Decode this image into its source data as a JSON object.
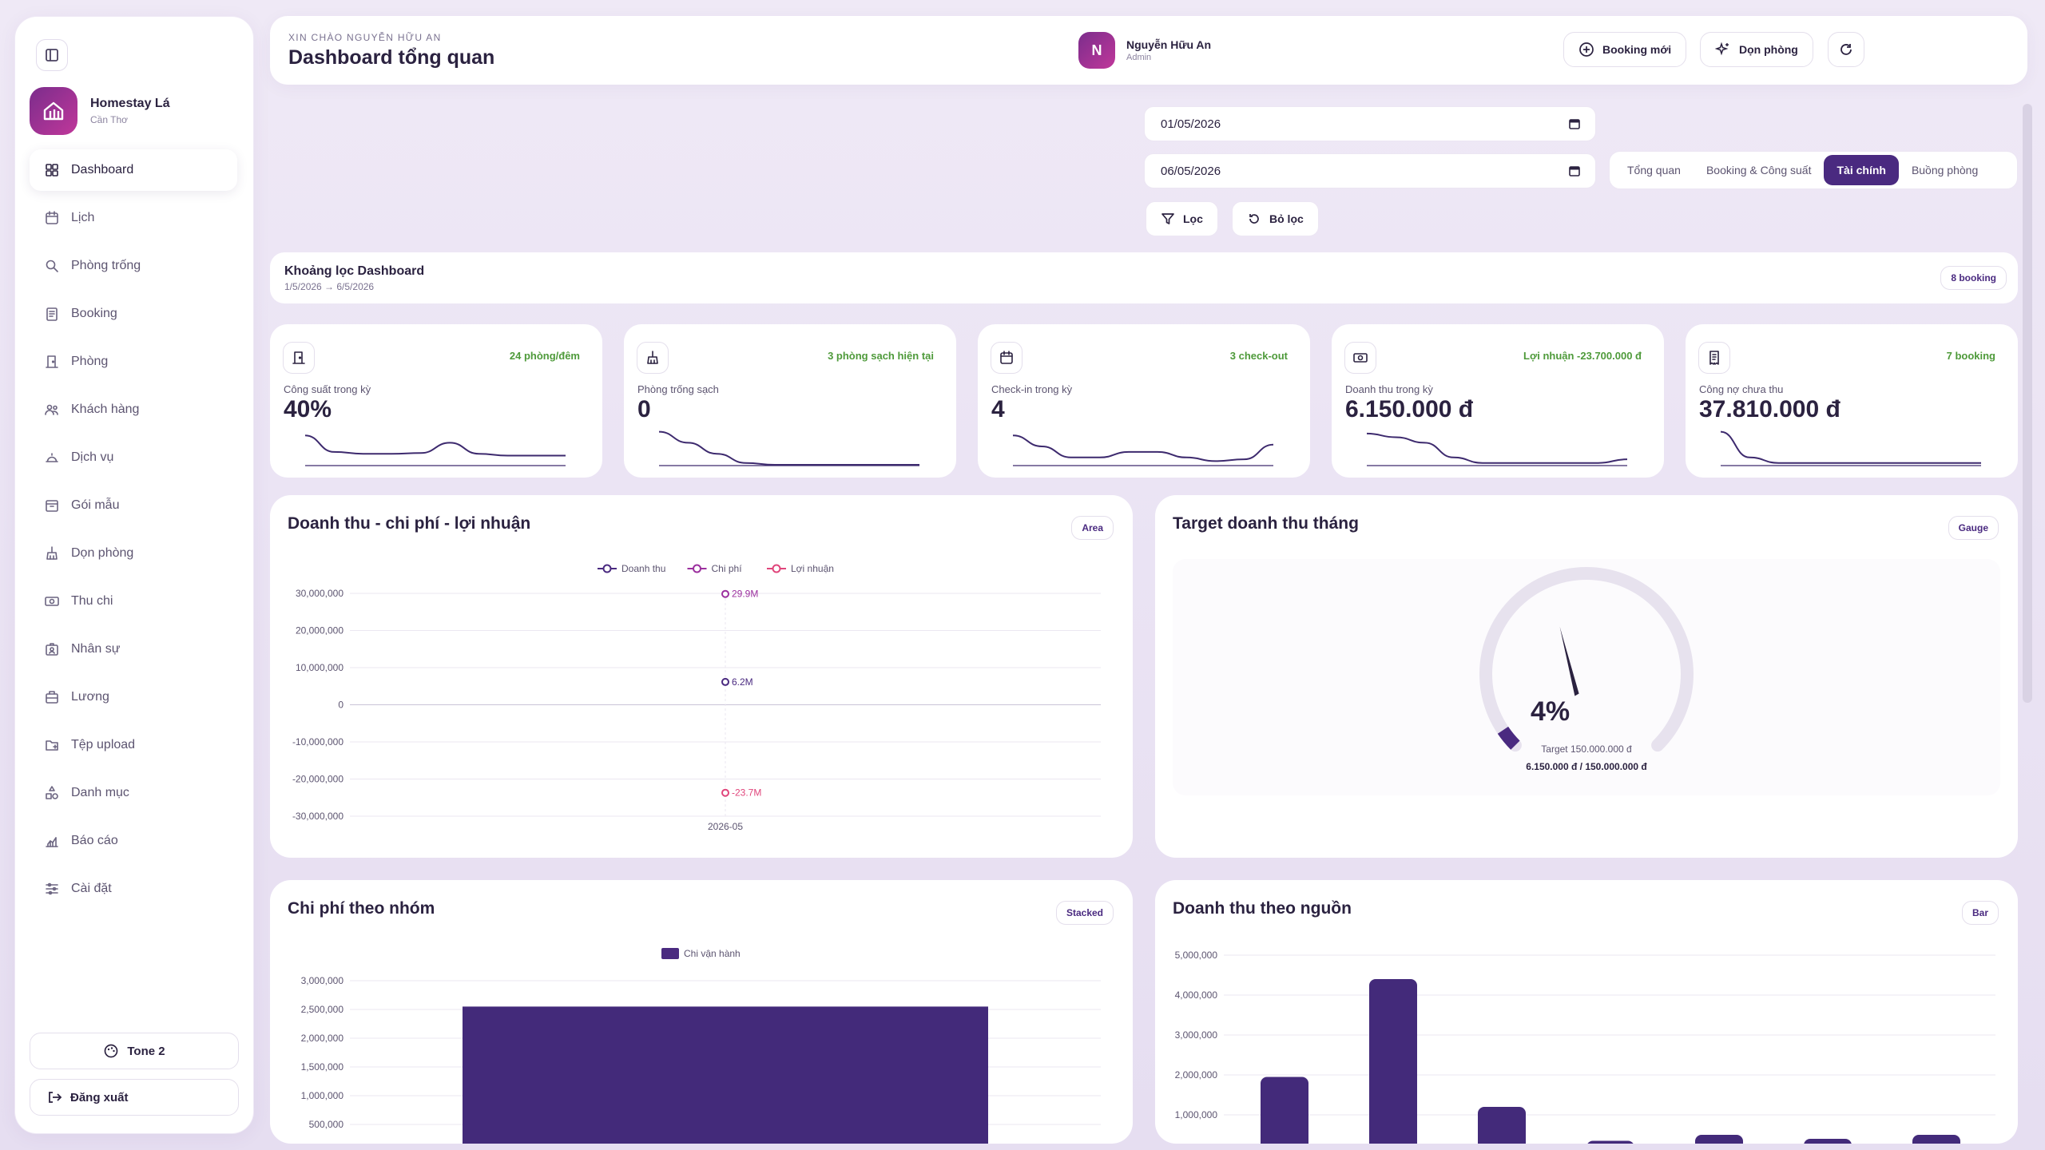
{
  "sidebar": {
    "brand_name": "Homestay Lá",
    "brand_sub": "Cần Thơ",
    "items": [
      {
        "label": "Dashboard",
        "icon": "grid-icon"
      },
      {
        "label": "Lịch",
        "icon": "calendar-icon"
      },
      {
        "label": "Phòng trống",
        "icon": "search-icon"
      },
      {
        "label": "Booking",
        "icon": "clipboard-icon"
      },
      {
        "label": "Phòng",
        "icon": "door-icon"
      },
      {
        "label": "Khách hàng",
        "icon": "users-icon"
      },
      {
        "label": "Dịch vụ",
        "icon": "bell-service-icon"
      },
      {
        "label": "Gói mẫu",
        "icon": "package-icon"
      },
      {
        "label": "Dọn phòng",
        "icon": "broom-icon"
      },
      {
        "label": "Thu chi",
        "icon": "money-icon"
      },
      {
        "label": "Nhân sự",
        "icon": "id-badge-icon"
      },
      {
        "label": "Lương",
        "icon": "briefcase-icon"
      },
      {
        "label": "Tệp upload",
        "icon": "folder-icon"
      },
      {
        "label": "Danh mục",
        "icon": "shapes-icon"
      },
      {
        "label": "Báo cáo",
        "icon": "chart-icon"
      },
      {
        "label": "Cài đặt",
        "icon": "sliders-icon"
      }
    ],
    "tone_label": "Tone 2",
    "logout_label": "Đăng xuất"
  },
  "header": {
    "greeting": "XIN CHÀO NGUYỄN HỮU AN",
    "title": "Dashboard tổng quan",
    "new_booking": "Booking mới",
    "clean_room": "Dọn phòng",
    "user_initial": "N",
    "user_name": "Nguyễn Hữu An",
    "user_role": "Admin"
  },
  "filters": {
    "from_date": "01/05/2026",
    "to_date": "06/05/2026",
    "filter_label": "Lọc",
    "clear_label": "Bỏ lọc"
  },
  "tabs": [
    {
      "label": "Tổng quan"
    },
    {
      "label": "Booking & Công suất"
    },
    {
      "label": "Tài chính"
    },
    {
      "label": "Buồng phòng"
    }
  ],
  "active_tab": "Tài chính",
  "range": {
    "title": "Khoảng lọc Dashboard",
    "subtitle": "1/5/2026 → 6/5/2026",
    "badge": "8 booking"
  },
  "kpis": [
    {
      "label": "Công suất trong kỳ",
      "value": "40%",
      "tag": "24 phòng/đêm",
      "icon": "door-icon",
      "trend": [
        0.8,
        0.35,
        0.3,
        0.3,
        0.32,
        0.6,
        0.3,
        0.25,
        0.25,
        0.25
      ]
    },
    {
      "label": "Phòng trống sạch",
      "value": "0",
      "tag": "3 phòng sạch hiện tại",
      "icon": "broom-icon",
      "trend": [
        0.9,
        0.6,
        0.3,
        0.05,
        0,
        0,
        0,
        0,
        0,
        0
      ]
    },
    {
      "label": "Check-in trong kỳ",
      "value": "4",
      "tag": "3 check-out",
      "icon": "calendar-icon",
      "trend": [
        0.8,
        0.5,
        0.2,
        0.2,
        0.35,
        0.35,
        0.2,
        0.1,
        0.15,
        0.55
      ]
    },
    {
      "label": "Doanh thu trong kỳ",
      "value": "6.150.000 đ",
      "tag": "Lợi nhuận -23.700.000 đ",
      "icon": "money-icon",
      "trend": [
        0.85,
        0.75,
        0.6,
        0.2,
        0.05,
        0.05,
        0.05,
        0.05,
        0.05,
        0.15
      ]
    },
    {
      "label": "Công nợ chưa thu",
      "value": "37.810.000 đ",
      "tag": "7 booking",
      "icon": "receipt-icon",
      "trend": [
        0.9,
        0.2,
        0.05,
        0.05,
        0.05,
        0.05,
        0.05,
        0.05,
        0.05,
        0.05
      ]
    }
  ],
  "colors": {
    "primary": "#4a2a80",
    "accent": "#c0379a",
    "profit": "#e0457b",
    "positive": "#4e9a3a"
  },
  "charts": {
    "revenue": {
      "title": "Doanh thu - chi phí - lợi nhuận",
      "badge": "Area",
      "chart_data": {
        "type": "line",
        "categories": [
          "2026-05"
        ],
        "series": [
          {
            "name": "Doanh thu",
            "values": [
              6150000
            ],
            "label": "6.2M",
            "color": "#4a2a80"
          },
          {
            "name": "Chi phí",
            "values": [
              29850000
            ],
            "label": "29.9M",
            "color": "#9b2f9e"
          },
          {
            "name": "Lợi nhuận",
            "values": [
              -23700000
            ],
            "label": "-23.7M",
            "color": "#e0457b"
          }
        ],
        "ylim": [
          -30000000,
          30000000
        ],
        "yticks": [
          "30,000,000",
          "20,000,000",
          "10,000,000",
          "0",
          "-10,000,000",
          "-20,000,000",
          "-30,000,000"
        ],
        "grid": true,
        "legend": "top"
      }
    },
    "target": {
      "title": "Target doanh thu tháng",
      "badge": "Gauge",
      "chart_data": {
        "type": "gauge",
        "value": 6150000,
        "target": 150000000,
        "percent_label": "4%",
        "target_label": "Target 150.000.000 đ",
        "progress_label": "6.150.000 đ / 150.000.000 đ",
        "percent": 0.041
      }
    },
    "expense": {
      "title": "Chi phí theo nhóm",
      "badge": "Stacked",
      "chart_data": {
        "type": "bar",
        "categories": [
          ""
        ],
        "series": [
          {
            "name": "Chi vận hành",
            "values": [
              2550000
            ]
          }
        ],
        "yticks": [
          "3,000,000",
          "2,500,000",
          "2,000,000",
          "1,500,000",
          "1,000,000",
          "500,000"
        ],
        "ylim": [
          0,
          3000000
        ],
        "legend": "top"
      }
    },
    "source": {
      "title": "Doanh thu theo nguồn",
      "badge": "Bar",
      "chart_data": {
        "type": "bar",
        "values": [
          1950000,
          4400000,
          1200000,
          350000,
          500000,
          400000,
          500000
        ],
        "yticks": [
          "5,000,000",
          "4,000,000",
          "3,000,000",
          "2,000,000",
          "1,000,000"
        ],
        "ylim": [
          0,
          5000000
        ]
      }
    }
  }
}
